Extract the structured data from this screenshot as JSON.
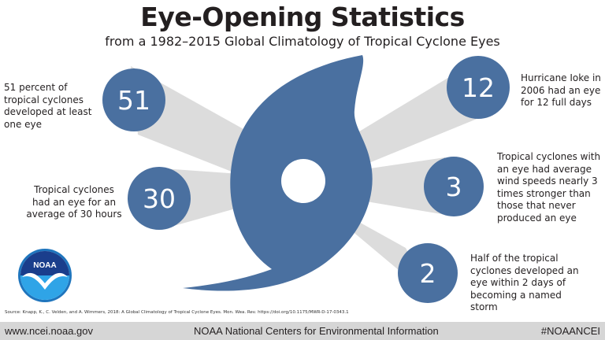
{
  "title": "Eye-Opening Statistics",
  "subtitle": "from a 1982–2015 Global Climatology of Tropical Cyclone Eyes",
  "colors": {
    "circle": "#4a70a0",
    "hurricane": "#4a70a0",
    "beam": "#dcdcdc",
    "footer_bg": "#d6d6d6"
  },
  "stats": [
    {
      "number": "51",
      "text": "51 percent of tropical cyclones developed at least one eye"
    },
    {
      "number": "30",
      "text": "Tropical cyclones had an eye for an average of 30 hours"
    },
    {
      "number": "12",
      "text": "Hurricane Ioke in 2006 had an eye for 12 full days"
    },
    {
      "number": "3",
      "text": "Tropical cyclones with an eye had average wind speeds nearly 3 times stronger than those that never produced an eye"
    },
    {
      "number": "2",
      "text": "Half of the tropical cyclones developed an eye within 2 days of becoming a named storm"
    }
  ],
  "logo": {
    "label": "NOAA"
  },
  "source": "Source: Knapp, K., C. Velden, and A. Wimmers, 2018: A Global Climatology of Tropical Cyclone Eyes. Mon. Wea. Rev. https://doi.org/10.1175/MWR-D-17-0343.1",
  "footer": {
    "website": "www.ncei.noaa.gov",
    "center": "NOAA National Centers for Environmental Information",
    "hashtag": "#NOAANCEI"
  }
}
